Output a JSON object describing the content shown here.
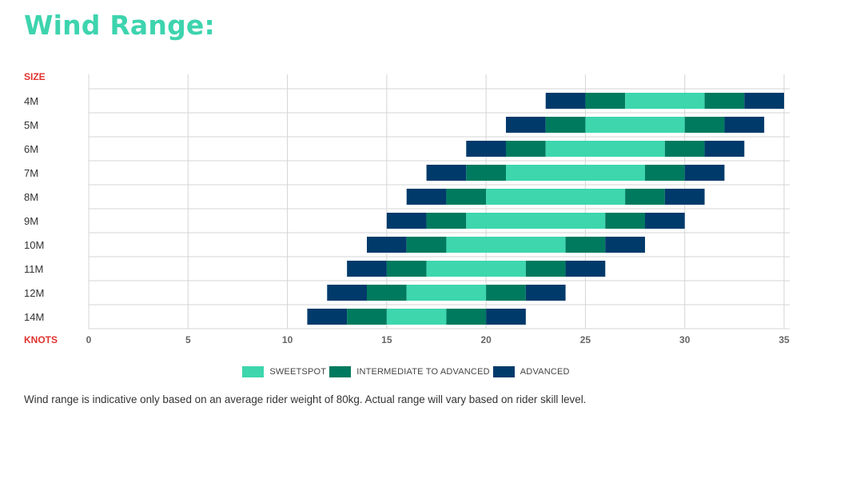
{
  "title": "Wind Range:",
  "colors": {
    "title": "#3dd4ae",
    "sweetspot": "#3dd6ad",
    "intermediate": "#007a5f",
    "advanced": "#003a6b",
    "axis_label": "#e0322e",
    "grid": "#d6d6d6"
  },
  "chart_data": {
    "type": "bar",
    "orientation": "horizontal-stacked-range",
    "ylabel": "SIZE",
    "xlabel": "KNOTS",
    "xlim": [
      0,
      35
    ],
    "xticks": [
      0,
      5,
      10,
      15,
      20,
      25,
      30,
      35
    ],
    "grid": true,
    "legend_position": "bottom-center",
    "series_names": [
      "SWEETSPOT",
      "INTERMEDIATE TO ADVANCED",
      "ADVANCED"
    ],
    "rows": [
      {
        "size": "4M",
        "segments": [
          [
            23,
            25,
            "advanced"
          ],
          [
            25,
            27,
            "intermediate"
          ],
          [
            27,
            31,
            "sweetspot"
          ],
          [
            31,
            33,
            "intermediate"
          ],
          [
            33,
            35,
            "advanced"
          ]
        ]
      },
      {
        "size": "5M",
        "segments": [
          [
            21,
            23,
            "advanced"
          ],
          [
            23,
            25,
            "intermediate"
          ],
          [
            25,
            30,
            "sweetspot"
          ],
          [
            30,
            32,
            "intermediate"
          ],
          [
            32,
            34,
            "advanced"
          ]
        ]
      },
      {
        "size": "6M",
        "segments": [
          [
            19,
            21,
            "advanced"
          ],
          [
            21,
            23,
            "intermediate"
          ],
          [
            23,
            29,
            "sweetspot"
          ],
          [
            29,
            31,
            "intermediate"
          ],
          [
            31,
            33,
            "advanced"
          ]
        ]
      },
      {
        "size": "7M",
        "segments": [
          [
            17,
            19,
            "advanced"
          ],
          [
            19,
            21,
            "intermediate"
          ],
          [
            21,
            28,
            "sweetspot"
          ],
          [
            28,
            30,
            "intermediate"
          ],
          [
            30,
            32,
            "advanced"
          ]
        ]
      },
      {
        "size": "8M",
        "segments": [
          [
            16,
            18,
            "advanced"
          ],
          [
            18,
            20,
            "intermediate"
          ],
          [
            20,
            27,
            "sweetspot"
          ],
          [
            27,
            29,
            "intermediate"
          ],
          [
            29,
            31,
            "advanced"
          ]
        ]
      },
      {
        "size": "9M",
        "segments": [
          [
            15,
            17,
            "advanced"
          ],
          [
            17,
            19,
            "intermediate"
          ],
          [
            19,
            26,
            "sweetspot"
          ],
          [
            26,
            28,
            "intermediate"
          ],
          [
            28,
            30,
            "advanced"
          ]
        ]
      },
      {
        "size": "10M",
        "segments": [
          [
            14,
            16,
            "advanced"
          ],
          [
            16,
            18,
            "intermediate"
          ],
          [
            18,
            24,
            "sweetspot"
          ],
          [
            24,
            26,
            "intermediate"
          ],
          [
            26,
            28,
            "advanced"
          ]
        ]
      },
      {
        "size": "11M",
        "segments": [
          [
            13,
            15,
            "advanced"
          ],
          [
            15,
            17,
            "intermediate"
          ],
          [
            17,
            22,
            "sweetspot"
          ],
          [
            22,
            24,
            "intermediate"
          ],
          [
            24,
            26,
            "advanced"
          ]
        ]
      },
      {
        "size": "12M",
        "segments": [
          [
            12,
            14,
            "advanced"
          ],
          [
            14,
            16,
            "intermediate"
          ],
          [
            16,
            20,
            "sweetspot"
          ],
          [
            20,
            22,
            "intermediate"
          ],
          [
            22,
            24,
            "advanced"
          ]
        ]
      },
      {
        "size": "14M",
        "segments": [
          [
            11,
            13,
            "advanced"
          ],
          [
            13,
            15,
            "intermediate"
          ],
          [
            15,
            18,
            "sweetspot"
          ],
          [
            18,
            20,
            "intermediate"
          ],
          [
            20,
            22,
            "advanced"
          ]
        ]
      }
    ]
  },
  "legend": {
    "sweetspot": "SWEETSPOT",
    "intermediate": "INTERMEDIATE TO ADVANCED",
    "advanced": "ADVANCED"
  },
  "note": "Wind range is indicative only based on an average rider weight of 80kg. Actual range will vary based on rider skill level."
}
